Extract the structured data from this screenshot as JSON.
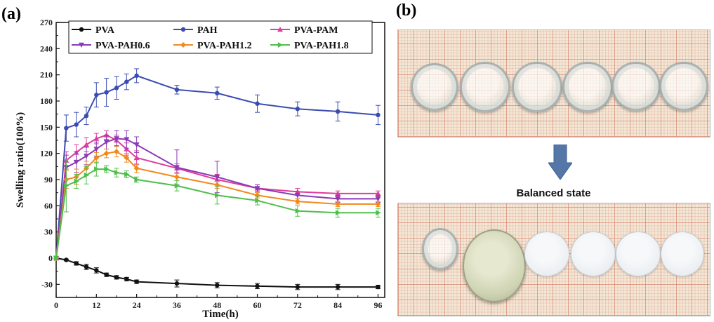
{
  "panel_a_label": "(a)",
  "panel_b_label": "(b)",
  "balanced_state_label": "Balanced state",
  "chart_data": {
    "type": "line",
    "xlabel": "Time(h)",
    "ylabel": "Swelling ratio(100%)",
    "xlim": [
      0,
      98
    ],
    "ylim": [
      -45,
      270
    ],
    "xticks": [
      0,
      12,
      24,
      36,
      48,
      60,
      72,
      84,
      96
    ],
    "yticks": [
      -30,
      0,
      30,
      60,
      90,
      120,
      150,
      180,
      210,
      240,
      270
    ],
    "grid": false,
    "legend_position": "top",
    "series": [
      {
        "name": "PVA",
        "color": "#111111",
        "marker": "circle",
        "x": [
          0,
          3,
          6,
          9,
          12,
          15,
          18,
          21,
          24,
          36,
          48,
          60,
          72,
          84,
          96
        ],
        "y": [
          0,
          -2,
          -6,
          -10,
          -14,
          -19,
          -22,
          -24,
          -27,
          -29,
          -31,
          -32,
          -33,
          -33,
          -33
        ],
        "err": [
          0,
          1,
          2,
          3,
          3,
          2,
          2,
          2,
          2,
          4,
          3,
          3,
          3,
          3,
          2
        ]
      },
      {
        "name": "PAH",
        "color": "#3a4cb0",
        "marker": "circle",
        "x": [
          0,
          3,
          6,
          9,
          12,
          15,
          18,
          21,
          24,
          36,
          48,
          60,
          72,
          84,
          96
        ],
        "y": [
          0,
          149,
          153,
          163,
          187,
          190,
          195,
          202,
          209,
          193,
          189,
          177,
          171,
          168,
          164
        ],
        "err": [
          0,
          15,
          14,
          10,
          14,
          16,
          13,
          9,
          8,
          5,
          7,
          10,
          8,
          11,
          11
        ]
      },
      {
        "name": "PVA-PAM",
        "color": "#dd3d9e",
        "marker": "triangle-up",
        "x": [
          0,
          3,
          6,
          9,
          12,
          15,
          18,
          21,
          24,
          36,
          48,
          60,
          72,
          84,
          96
        ],
        "y": [
          0,
          112,
          121,
          130,
          137,
          141,
          135,
          125,
          115,
          103,
          90,
          80,
          76,
          74,
          74
        ],
        "err": [
          0,
          10,
          9,
          8,
          6,
          5,
          6,
          7,
          8,
          5,
          6,
          4,
          4,
          3,
          3
        ]
      },
      {
        "name": "PVA-PAH0.6",
        "color": "#8a3ab5",
        "marker": "triangle-down",
        "x": [
          0,
          3,
          6,
          9,
          12,
          15,
          18,
          21,
          24,
          36,
          48,
          60,
          72,
          84,
          96
        ],
        "y": [
          0,
          104,
          110,
          117,
          125,
          133,
          137,
          136,
          130,
          104,
          93,
          80,
          72,
          68,
          68
        ],
        "err": [
          0,
          14,
          12,
          10,
          8,
          8,
          9,
          10,
          9,
          20,
          18,
          4,
          4,
          4,
          4
        ]
      },
      {
        "name": "PVA-PAH1.2",
        "color": "#f2891d",
        "marker": "diamond",
        "x": [
          0,
          3,
          6,
          9,
          12,
          15,
          18,
          21,
          24,
          36,
          48,
          60,
          72,
          84,
          96
        ],
        "y": [
          0,
          90,
          93,
          103,
          115,
          120,
          122,
          115,
          103,
          93,
          84,
          72,
          65,
          62,
          62
        ],
        "err": [
          0,
          10,
          9,
          8,
          6,
          5,
          6,
          5,
          5,
          4,
          4,
          3,
          3,
          3,
          3
        ]
      },
      {
        "name": "PVA-PAH1.8",
        "color": "#4fbf4a",
        "marker": "triangle-right",
        "x": [
          0,
          3,
          6,
          9,
          12,
          15,
          18,
          21,
          24,
          36,
          48,
          60,
          72,
          84,
          96
        ],
        "y": [
          0,
          83,
          88,
          95,
          102,
          102,
          98,
          96,
          90,
          83,
          72,
          66,
          54,
          52,
          52
        ],
        "err": [
          0,
          30,
          8,
          10,
          8,
          4,
          5,
          4,
          3,
          6,
          10,
          5,
          6,
          5,
          5
        ]
      }
    ]
  },
  "photos": {
    "top_alt": "Six transparent hydrogel discs before swelling",
    "bottom_alt": "Hydrogel discs at balanced state"
  }
}
